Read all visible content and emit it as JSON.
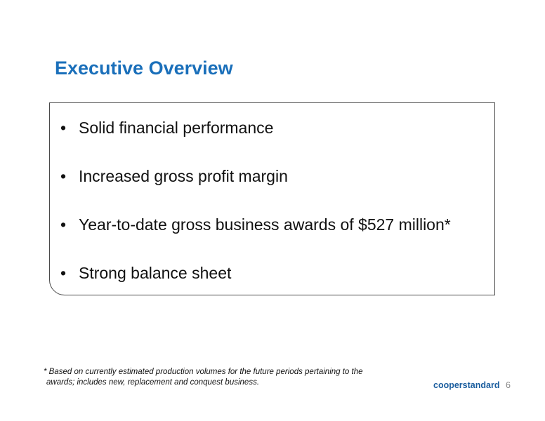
{
  "slide": {
    "title": "Executive Overview",
    "bullets": [
      "Solid financial performance",
      "Increased gross profit margin",
      "Year-to-date gross business awards of $527 million*",
      "Strong balance sheet"
    ],
    "footnote_line1": "* Based on currently estimated production volumes for the future periods pertaining to the",
    "footnote_line2": "awards; includes new, replacement and conquest business.",
    "logo_text": "cooperstandard",
    "page_number": "6",
    "colors": {
      "title": "#1a6fba",
      "logo": "#1a5d9e"
    }
  }
}
